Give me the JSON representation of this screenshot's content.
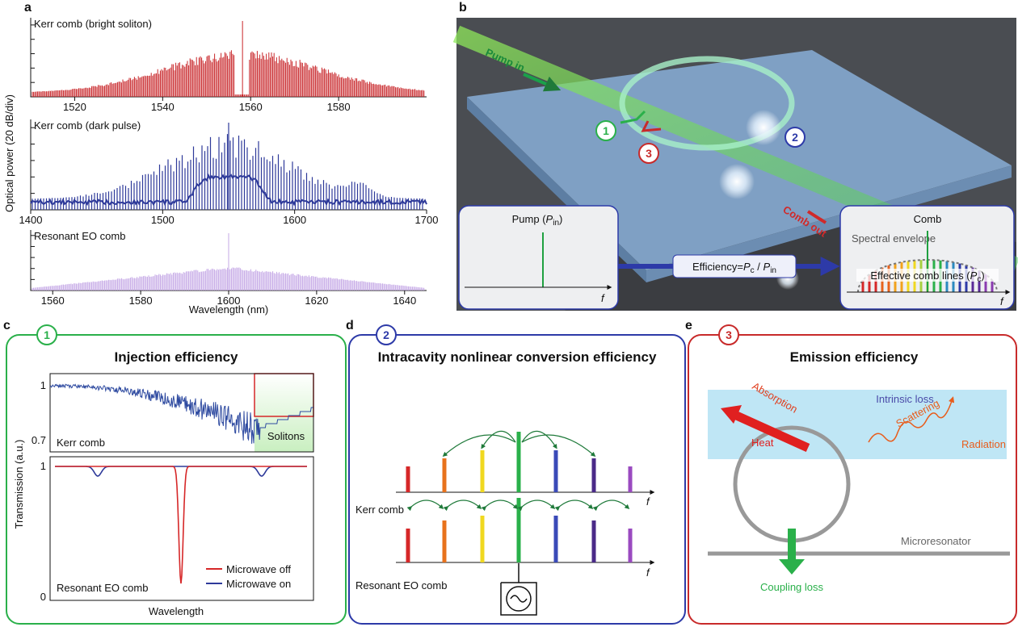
{
  "panels": {
    "a": {
      "label": "a",
      "y_axis_label": "Optical power (20 dB/div)",
      "x_axis_label": "Wavelength (nm)",
      "plots": [
        {
          "title": "Kerr comb (bright soliton)",
          "color": "#c8262a",
          "xlim": [
            1510,
            1600
          ],
          "xticks": [
            1520,
            1540,
            1560,
            1580
          ]
        },
        {
          "title": "Kerr comb (dark pulse)",
          "color": "#2e3a9a",
          "xlim": [
            1400,
            1700
          ],
          "xticks": [
            1400,
            1500,
            1600,
            1700
          ]
        },
        {
          "title": "Resonant EO comb",
          "color": "#c5a8e6",
          "xlim": [
            1555,
            1645
          ],
          "xticks": [
            1560,
            1580,
            1600,
            1620,
            1640
          ]
        }
      ]
    },
    "b": {
      "label": "b",
      "pump_in": "Pump in",
      "badge_1": "1",
      "badge_2": "2",
      "badge_3": "3",
      "comb_out": "Comb out",
      "pump_label": [
        "Pump (",
        "P",
        "in",
        ")"
      ],
      "left_axis": "f",
      "efficiency": [
        "Efficiency=",
        "P",
        "c",
        " / ",
        "P",
        "in"
      ],
      "comb": "Comb",
      "envelope": "Spectral envelope",
      "effective": [
        "Effective comb lines (",
        "P",
        "c",
        ")"
      ],
      "right_axis": "f"
    },
    "c": {
      "label": "c",
      "badge": "1",
      "title": "Injection efficiency",
      "y_axis_label": "Transmission (a.u.)",
      "x_axis_label": "Wavelength",
      "top_ticks": [
        "1",
        "0.7"
      ],
      "top_label": "Kerr comb",
      "solitons": "Solitons",
      "bottom_ticks": [
        "1",
        "0"
      ],
      "bottom_label": "Resonant EO comb",
      "legend": [
        {
          "name": "Microwave off",
          "color": "#d62728"
        },
        {
          "name": "Microwave on",
          "color": "#2e3a9a"
        }
      ]
    },
    "d": {
      "label": "d",
      "badge": "2",
      "title": "Intracavity nonlinear conversion efficiency",
      "kerr": "Kerr comb",
      "kerr_axis": "f",
      "eo": "Resonant EO comb",
      "eo_axis": "f"
    },
    "e": {
      "label": "e",
      "badge": "3",
      "title": "Emission efficiency",
      "intrinsic": "Intrinsic loss",
      "absorption": "Absorption",
      "heat": "Heat",
      "scattering": "Scattering",
      "radiation": "Radiation",
      "microresonator": "Microresonator",
      "coupling": "Coupling loss"
    }
  }
}
